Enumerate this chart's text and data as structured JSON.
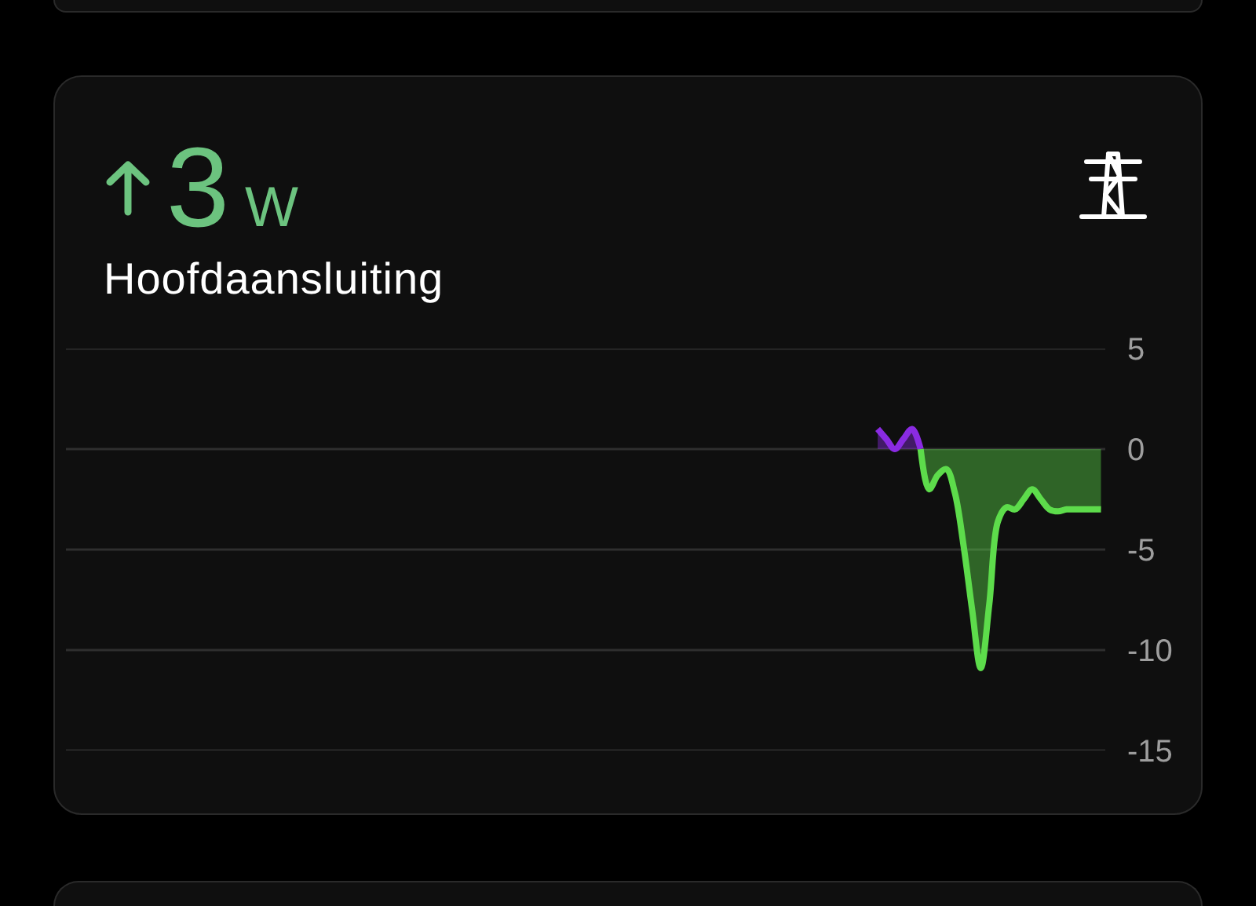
{
  "chart_data": {
    "type": "area",
    "title": "Hoofdaansluiting",
    "annotations": [
      "3",
      "W"
    ],
    "categories": [
      null,
      null,
      null,
      null,
      null,
      null,
      null,
      null,
      null,
      null,
      null,
      null,
      null,
      null,
      null,
      null,
      null,
      null,
      null,
      null,
      null,
      null,
      null,
      null,
      null,
      null,
      null,
      null,
      null,
      null,
      null,
      null,
      null,
      null,
      null,
      null,
      null,
      null,
      null,
      null,
      null,
      null,
      null,
      null,
      null,
      null,
      null,
      null,
      null,
      null,
      null,
      null,
      null,
      null,
      null,
      null,
      null,
      null,
      null,
      null,
      null,
      null,
      null,
      null,
      null,
      null,
      null,
      null,
      null,
      null,
      null,
      null,
      null,
      null,
      null,
      null,
      null,
      null,
      null,
      null,
      null,
      null,
      null,
      null,
      null,
      null,
      null,
      null,
      null,
      null,
      null,
      null,
      null,
      null,
      null,
      null,
      null,
      null,
      null,
      null,
      null,
      null,
      null,
      null,
      null,
      null,
      null,
      null,
      null,
      null,
      null,
      null,
      null,
      null,
      null,
      null,
      null,
      null,
      null,
      null,
      null
    ],
    "series": [
      {
        "color": "#8a2be2",
        "values": [
          null,
          null,
          null,
          null,
          null,
          null,
          null,
          null,
          null,
          null,
          null,
          null,
          null,
          null,
          null,
          null,
          null,
          null,
          null,
          null,
          null,
          null,
          null,
          null,
          null,
          null,
          null,
          null,
          null,
          null,
          null,
          null,
          null,
          null,
          null,
          null,
          null,
          null,
          null,
          null,
          null,
          null,
          null,
          null,
          null,
          null,
          null,
          null,
          null,
          null,
          null,
          null,
          null,
          null,
          null,
          null,
          null,
          null,
          null,
          null,
          null,
          null,
          null,
          null,
          null,
          null,
          null,
          null,
          null,
          null,
          null,
          null,
          null,
          null,
          null,
          null,
          null,
          null,
          null,
          null,
          null,
          null,
          null,
          null,
          null,
          null,
          null,
          null,
          null,
          null,
          null,
          null,
          null,
          null,
          1.0,
          0.5,
          0.0,
          0.5,
          1.0,
          0.0,
          null,
          null,
          null,
          null,
          null,
          null,
          null,
          null,
          null,
          null,
          null,
          null,
          null,
          null,
          null,
          null,
          null,
          null,
          null,
          null,
          null
        ]
      },
      {
        "color": "#5ddc4b",
        "values": [
          null,
          null,
          null,
          null,
          null,
          null,
          null,
          null,
          null,
          null,
          null,
          null,
          null,
          null,
          null,
          null,
          null,
          null,
          null,
          null,
          null,
          null,
          null,
          null,
          null,
          null,
          null,
          null,
          null,
          null,
          null,
          null,
          null,
          null,
          null,
          null,
          null,
          null,
          null,
          null,
          null,
          null,
          null,
          null,
          null,
          null,
          null,
          null,
          null,
          null,
          null,
          null,
          null,
          null,
          null,
          null,
          null,
          null,
          null,
          null,
          null,
          null,
          null,
          null,
          null,
          null,
          null,
          null,
          null,
          null,
          null,
          null,
          null,
          null,
          null,
          null,
          null,
          null,
          null,
          null,
          null,
          null,
          null,
          null,
          null,
          null,
          null,
          null,
          null,
          null,
          null,
          null,
          null,
          null,
          null,
          null,
          null,
          null,
          null,
          0.0,
          -2.0,
          -1.3,
          -1.0,
          -2.2,
          -4.8,
          -8.0,
          -10.9,
          -7.7,
          -3.6,
          -2.9,
          -3.0,
          -2.5,
          -2.0,
          -2.5,
          -3.0,
          -3.1,
          -3.0,
          -3.0,
          -3.0,
          -3.0,
          -3.0
        ]
      }
    ],
    "ylim": [
      -15,
      5
    ],
    "yticks": [
      5,
      0,
      -5,
      -10,
      -15
    ],
    "grid": "y",
    "tick_labels": "y"
  }
}
